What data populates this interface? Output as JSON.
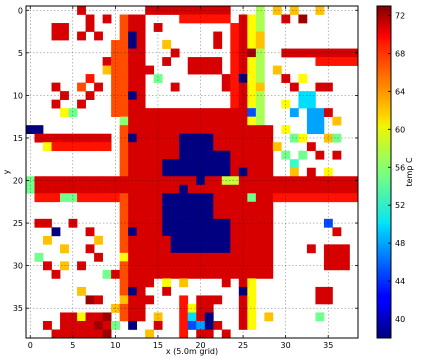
{
  "chart_data": {
    "type": "heatmap",
    "title": "",
    "xlabel": "x (5.0m grid)",
    "ylabel": "y",
    "xlim": [
      -0.5,
      38.5
    ],
    "ylim": [
      38.5,
      -0.5
    ],
    "x_ticks": [
      0,
      5,
      10,
      15,
      20,
      25,
      30,
      35
    ],
    "y_ticks": [
      0,
      5,
      10,
      15,
      20,
      25,
      30,
      35
    ],
    "grid": true,
    "colormap": "jet",
    "colorbar": {
      "label": "temp C",
      "range": [
        38,
        73
      ],
      "ticks": [
        40,
        44,
        48,
        52,
        56,
        60,
        64,
        68,
        72
      ]
    },
    "grid_size": [
      39,
      39
    ],
    "background_value": null,
    "rects": [
      {
        "x": [
          12,
          13
        ],
        "y": [
          1,
          36
        ],
        "value": 70
      },
      {
        "x": [
          11,
          11
        ],
        "y": [
          1,
          36
        ],
        "value": 66
      },
      {
        "x": [
          25,
          25
        ],
        "y": [
          1,
          37
        ],
        "value": 70
      },
      {
        "x": [
          26,
          26
        ],
        "y": [
          1,
          37
        ],
        "value": 60
      },
      {
        "x": [
          27,
          27
        ],
        "y": [
          0,
          20
        ],
        "value": 57
      },
      {
        "x": [
          24,
          24
        ],
        "y": [
          2,
          14
        ],
        "value": 68
      },
      {
        "x": [
          10,
          10
        ],
        "y": [
          4,
          12
        ],
        "value": 66
      },
      {
        "x": [
          14,
          24
        ],
        "y": [
          12,
          14
        ],
        "value": 70
      },
      {
        "x": [
          14,
          15
        ],
        "y": [
          14,
          31
        ],
        "value": 70
      },
      {
        "x": [
          24,
          28
        ],
        "y": [
          14,
          31
        ],
        "value": 70
      },
      {
        "x": [
          14,
          28
        ],
        "y": [
          29,
          31
        ],
        "value": 70
      },
      {
        "x": [
          16,
          23
        ],
        "y": [
          15,
          28
        ],
        "value": 38
      },
      {
        "x": [
          16,
          17
        ],
        "y": [
          15,
          17
        ],
        "value": 70
      },
      {
        "x": [
          22,
          23
        ],
        "y": [
          15,
          16
        ],
        "value": 70
      },
      {
        "x": [
          22,
          23
        ],
        "y": [
          22,
          24
        ],
        "value": 70
      },
      {
        "x": [
          16,
          16
        ],
        "y": [
          27,
          28
        ],
        "value": 70
      },
      {
        "x": [
          0,
          38
        ],
        "y": [
          20,
          21
        ],
        "value": 70
      },
      {
        "x": [
          1,
          10
        ],
        "y": [
          22,
          22
        ],
        "value": 68
      },
      {
        "x": [
          29,
          38
        ],
        "y": [
          22,
          22
        ],
        "value": 68
      },
      {
        "x": [
          1,
          9
        ],
        "y": [
          15,
          15
        ],
        "value": 70
      },
      {
        "x": [
          2,
          9
        ],
        "y": [
          16,
          16
        ],
        "value": 68
      },
      {
        "x": [
          3,
          4
        ],
        "y": [
          2,
          3
        ],
        "value": 70
      },
      {
        "x": [
          14,
          23
        ],
        "y": [
          0,
          0
        ],
        "value": 70
      },
      {
        "x": [
          18,
          23
        ],
        "y": [
          1,
          1
        ],
        "value": 68
      },
      {
        "x": [
          19,
          22
        ],
        "y": [
          6,
          7
        ],
        "value": 70
      },
      {
        "x": [
          30,
          38
        ],
        "y": [
          5,
          5
        ],
        "value": 70
      },
      {
        "x": [
          34,
          38
        ],
        "y": [
          6,
          6
        ],
        "value": 68
      },
      {
        "x": [
          35,
          37
        ],
        "y": [
          28,
          30
        ],
        "value": 70
      },
      {
        "x": [
          34,
          35
        ],
        "y": [
          33,
          34
        ],
        "value": 70
      },
      {
        "x": [
          18,
          18
        ],
        "y": [
          34,
          38
        ],
        "value": 68
      },
      {
        "x": [
          20,
          21
        ],
        "y": [
          34,
          38
        ],
        "value": 70
      },
      {
        "x": [
          4,
          9
        ],
        "y": [
          36,
          38
        ],
        "value": 70
      },
      {
        "x": [
          0,
          0
        ],
        "y": [
          20,
          21
        ],
        "value": 55
      },
      {
        "x": [
          23,
          24
        ],
        "y": [
          20,
          20
        ],
        "value": 58
      },
      {
        "x": [
          26,
          26
        ],
        "y": [
          22,
          22
        ],
        "value": 55
      },
      {
        "x": [
          33,
          34
        ],
        "y": [
          12,
          14
        ],
        "value": 48
      },
      {
        "x": [
          32,
          33
        ],
        "y": [
          10,
          11
        ],
        "value": 50
      },
      {
        "x": [
          31,
          31
        ],
        "y": [
          18,
          18
        ],
        "value": 53
      }
    ],
    "cells": [
      {
        "x": 12,
        "y": 3,
        "value": 38
      },
      {
        "x": 12,
        "y": 4,
        "value": 38
      },
      {
        "x": 12,
        "y": 10,
        "value": 38
      },
      {
        "x": 12,
        "y": 15,
        "value": 38
      },
      {
        "x": 12,
        "y": 26,
        "value": 38
      },
      {
        "x": 12,
        "y": 33,
        "value": 38
      },
      {
        "x": 12,
        "y": 37,
        "value": 38
      },
      {
        "x": 25,
        "y": 8,
        "value": 38
      },
      {
        "x": 25,
        "y": 19,
        "value": 38
      },
      {
        "x": 25,
        "y": 33,
        "value": 38
      },
      {
        "x": 26,
        "y": 5,
        "value": 72
      },
      {
        "x": 26,
        "y": 12,
        "value": 45
      },
      {
        "x": 27,
        "y": 3,
        "value": 62
      },
      {
        "x": 27,
        "y": 4,
        "value": 62
      },
      {
        "x": 27,
        "y": 9,
        "value": 62
      },
      {
        "x": 11,
        "y": 13,
        "value": 56
      },
      {
        "x": 11,
        "y": 29,
        "value": 60
      },
      {
        "x": 11,
        "y": 34,
        "value": 62
      },
      {
        "x": 4,
        "y": 22,
        "value": 55
      },
      {
        "x": 5,
        "y": 22,
        "value": 55
      },
      {
        "x": 17,
        "y": 22,
        "value": 38
      },
      {
        "x": 20,
        "y": 20,
        "value": 38
      },
      {
        "x": 18,
        "y": 21,
        "value": 38
      },
      {
        "x": 1,
        "y": 14,
        "value": 38
      },
      {
        "x": 0,
        "y": 14,
        "value": 38
      },
      {
        "x": 2,
        "y": 16,
        "value": 60
      },
      {
        "x": 6,
        "y": 9,
        "value": 66
      },
      {
        "x": 7,
        "y": 8,
        "value": 68
      },
      {
        "x": 3,
        "y": 9,
        "value": 70
      },
      {
        "x": 4,
        "y": 10,
        "value": 70
      },
      {
        "x": 3,
        "y": 11,
        "value": 70
      },
      {
        "x": 4,
        "y": 12,
        "value": 60
      },
      {
        "x": 5,
        "y": 12,
        "value": 55
      },
      {
        "x": 6,
        "y": 11,
        "value": 70
      },
      {
        "x": 7,
        "y": 10,
        "value": 70
      },
      {
        "x": 8,
        "y": 9,
        "value": 70
      },
      {
        "x": 6,
        "y": 0,
        "value": 70
      },
      {
        "x": 7,
        "y": 1,
        "value": 70
      },
      {
        "x": 7,
        "y": 2,
        "value": 70
      },
      {
        "x": 6,
        "y": 3,
        "value": 70
      },
      {
        "x": 8,
        "y": 3,
        "value": 70
      },
      {
        "x": 9,
        "y": 1,
        "value": 70
      },
      {
        "x": 9,
        "y": 6,
        "value": 70
      },
      {
        "x": 9,
        "y": 7,
        "value": 62
      },
      {
        "x": 15,
        "y": 2,
        "value": 70
      },
      {
        "x": 16,
        "y": 4,
        "value": 62
      },
      {
        "x": 15,
        "y": 8,
        "value": 55
      },
      {
        "x": 14,
        "y": 7,
        "value": 70
      },
      {
        "x": 17,
        "y": 9,
        "value": 70
      },
      {
        "x": 17,
        "y": 5,
        "value": 70
      },
      {
        "x": 16,
        "y": 6,
        "value": 70
      },
      {
        "x": 22,
        "y": 3,
        "value": 70
      },
      {
        "x": 22,
        "y": 4,
        "value": 70
      },
      {
        "x": 23,
        "y": 8,
        "value": 70
      },
      {
        "x": 23,
        "y": 9,
        "value": 70
      },
      {
        "x": 29,
        "y": 0,
        "value": 62
      },
      {
        "x": 30,
        "y": 1,
        "value": 70
      },
      {
        "x": 31,
        "y": 0,
        "value": 62
      },
      {
        "x": 32,
        "y": 1,
        "value": 72
      },
      {
        "x": 34,
        "y": 0,
        "value": 62
      },
      {
        "x": 30,
        "y": 8,
        "value": 70
      },
      {
        "x": 31,
        "y": 9,
        "value": 70
      },
      {
        "x": 29,
        "y": 7,
        "value": 62
      },
      {
        "x": 32,
        "y": 8,
        "value": 60
      },
      {
        "x": 34,
        "y": 9,
        "value": 70
      },
      {
        "x": 35,
        "y": 9,
        "value": 70
      },
      {
        "x": 30,
        "y": 11,
        "value": 60
      },
      {
        "x": 31,
        "y": 12,
        "value": 48
      },
      {
        "x": 30,
        "y": 14,
        "value": 60
      },
      {
        "x": 31,
        "y": 15,
        "value": 55
      },
      {
        "x": 32,
        "y": 15,
        "value": 60
      },
      {
        "x": 35,
        "y": 12,
        "value": 70
      },
      {
        "x": 36,
        "y": 13,
        "value": 62
      },
      {
        "x": 35,
        "y": 15,
        "value": 62
      },
      {
        "x": 36,
        "y": 15,
        "value": 55
      },
      {
        "x": 33,
        "y": 16,
        "value": 70
      },
      {
        "x": 34,
        "y": 17,
        "value": 70
      },
      {
        "x": 29,
        "y": 16,
        "value": 62
      },
      {
        "x": 30,
        "y": 17,
        "value": 55
      },
      {
        "x": 32,
        "y": 17,
        "value": 55
      },
      {
        "x": 36,
        "y": 17,
        "value": 70
      },
      {
        "x": 31,
        "y": 19,
        "value": 62
      },
      {
        "x": 33,
        "y": 19,
        "value": 70
      },
      {
        "x": 35,
        "y": 19,
        "value": 60
      },
      {
        "x": 33,
        "y": 28,
        "value": 70
      },
      {
        "x": 35,
        "y": 25,
        "value": 45
      },
      {
        "x": 36,
        "y": 26,
        "value": 70
      },
      {
        "x": 34,
        "y": 36,
        "value": 55
      },
      {
        "x": 28,
        "y": 36,
        "value": 62
      },
      {
        "x": 1,
        "y": 25,
        "value": 70
      },
      {
        "x": 2,
        "y": 25,
        "value": 70
      },
      {
        "x": 3,
        "y": 26,
        "value": 38
      },
      {
        "x": 2,
        "y": 27,
        "value": 62
      },
      {
        "x": 4,
        "y": 28,
        "value": 62
      },
      {
        "x": 1,
        "y": 29,
        "value": 55
      },
      {
        "x": 2,
        "y": 30,
        "value": 70
      },
      {
        "x": 4,
        "y": 30,
        "value": 62
      },
      {
        "x": 5,
        "y": 25,
        "value": 70
      },
      {
        "x": 7,
        "y": 26,
        "value": 70
      },
      {
        "x": 8,
        "y": 27,
        "value": 62
      },
      {
        "x": 7,
        "y": 28,
        "value": 70
      },
      {
        "x": 8,
        "y": 29,
        "value": 70
      },
      {
        "x": 6,
        "y": 30,
        "value": 70
      },
      {
        "x": 3,
        "y": 31,
        "value": 70
      },
      {
        "x": 9,
        "y": 31,
        "value": 55
      },
      {
        "x": 10,
        "y": 31,
        "value": 70
      },
      {
        "x": 6,
        "y": 33,
        "value": 62
      },
      {
        "x": 7,
        "y": 34,
        "value": 72
      },
      {
        "x": 8,
        "y": 34,
        "value": 70
      },
      {
        "x": 10,
        "y": 35,
        "value": 62
      },
      {
        "x": 9,
        "y": 36,
        "value": 72
      },
      {
        "x": 6,
        "y": 36,
        "value": 60
      },
      {
        "x": 10,
        "y": 37,
        "value": 55
      },
      {
        "x": 2,
        "y": 37,
        "value": 70
      },
      {
        "x": 3,
        "y": 38,
        "value": 70
      },
      {
        "x": 9,
        "y": 38,
        "value": 72
      },
      {
        "x": 8,
        "y": 37,
        "value": 72
      },
      {
        "x": 14,
        "y": 32,
        "value": 70
      },
      {
        "x": 14,
        "y": 34,
        "value": 70
      },
      {
        "x": 15,
        "y": 36,
        "value": 62
      },
      {
        "x": 15,
        "y": 37,
        "value": 70
      },
      {
        "x": 14,
        "y": 38,
        "value": 62
      },
      {
        "x": 19,
        "y": 35,
        "value": 60
      },
      {
        "x": 19,
        "y": 36,
        "value": 50
      },
      {
        "x": 19,
        "y": 37,
        "value": 45
      },
      {
        "x": 20,
        "y": 37,
        "value": 48
      },
      {
        "x": 21,
        "y": 36,
        "value": 38
      },
      {
        "x": 21,
        "y": 37,
        "value": 38
      },
      {
        "x": 22,
        "y": 37,
        "value": 70
      },
      {
        "x": 23,
        "y": 38,
        "value": 70
      },
      {
        "x": 22,
        "y": 34,
        "value": 70
      },
      {
        "x": 16,
        "y": 32,
        "value": 60
      },
      {
        "x": 16,
        "y": 33,
        "value": 70
      },
      {
        "x": 18,
        "y": 32,
        "value": 62
      },
      {
        "x": 23,
        "y": 32,
        "value": 70
      }
    ]
  }
}
